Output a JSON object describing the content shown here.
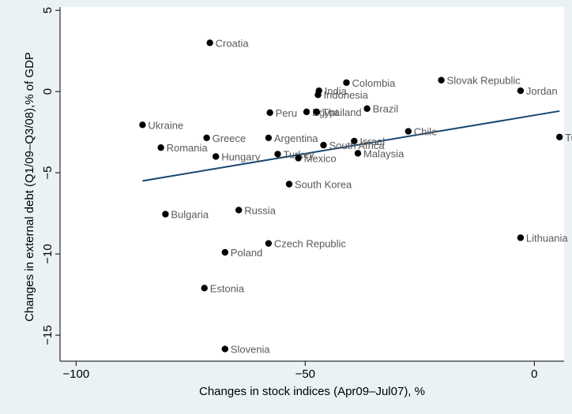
{
  "chart_data": {
    "type": "scatter",
    "title": "",
    "xlabel": "Changes in stock indices (Apr09–Jul07), %",
    "ylabel": "Changes in external debt (Q1/09–Q3/08),% of GDP",
    "xlim": [
      -103.5,
      6.5
    ],
    "ylim": [
      -16.6,
      5.2
    ],
    "xticks": [
      -100,
      -50,
      0
    ],
    "xtick_labels": [
      "−100",
      "−50",
      "0"
    ],
    "yticks": [
      5,
      0,
      -5,
      -10,
      -15
    ],
    "ytick_labels": [
      "5",
      "0",
      "−5",
      "−10",
      "−15"
    ],
    "grid": false,
    "legend": "none",
    "colors": {
      "background": "#eaf2f3",
      "plot_area": "#ffffff",
      "points": "#000000",
      "fit_line": "#1a476f",
      "labels": "#595959"
    },
    "points": [
      {
        "label": "Croatia",
        "x": -70.8,
        "y": 3.0
      },
      {
        "label": "Colombia",
        "x": -41.0,
        "y": 0.55
      },
      {
        "label": "Slovak Republic",
        "x": -20.3,
        "y": 0.7
      },
      {
        "label": "Jordan",
        "x": -3.0,
        "y": 0.05
      },
      {
        "label": "India",
        "x": -47.0,
        "y": 0.05
      },
      {
        "label": "Indonesia",
        "x": -47.2,
        "y": -0.2
      },
      {
        "label": "Brazil",
        "x": -36.5,
        "y": -1.05
      },
      {
        "label": "Peru",
        "x": -57.7,
        "y": -1.3
      },
      {
        "label": "Egypt",
        "x": -49.7,
        "y": -1.25
      },
      {
        "label": "Thailand",
        "x": -47.5,
        "y": -1.25
      },
      {
        "label": "Ukraine",
        "x": -85.5,
        "y": -2.05
      },
      {
        "label": "Chile",
        "x": -27.5,
        "y": -2.45
      },
      {
        "label": "Tunisia",
        "x": 5.5,
        "y": -2.8
      },
      {
        "label": "Greece",
        "x": -71.5,
        "y": -2.85
      },
      {
        "label": "Argentina",
        "x": -58.0,
        "y": -2.85
      },
      {
        "label": "Israel",
        "x": -39.3,
        "y": -3.05
      },
      {
        "label": "South Africa",
        "x": -46.0,
        "y": -3.3
      },
      {
        "label": "Romania",
        "x": -81.5,
        "y": -3.45
      },
      {
        "label": "Malaysia",
        "x": -38.5,
        "y": -3.8
      },
      {
        "label": "Turkey",
        "x": -56.0,
        "y": -3.85
      },
      {
        "label": "Hungary",
        "x": -69.5,
        "y": -4.0
      },
      {
        "label": "Mexico",
        "x": -51.5,
        "y": -4.1
      },
      {
        "label": "South Korea",
        "x": -53.5,
        "y": -5.7
      },
      {
        "label": "Russia",
        "x": -64.5,
        "y": -7.3
      },
      {
        "label": "Bulgaria",
        "x": -80.5,
        "y": -7.55
      },
      {
        "label": "Lithuania",
        "x": -3.0,
        "y": -9.0
      },
      {
        "label": "Czech Republic",
        "x": -58.0,
        "y": -9.35
      },
      {
        "label": "Poland",
        "x": -67.5,
        "y": -9.9
      },
      {
        "label": "Estonia",
        "x": -72.0,
        "y": -12.1
      },
      {
        "label": "Slovenia",
        "x": -67.5,
        "y": -15.85
      }
    ],
    "fit_line": {
      "x": [
        -85.5,
        5.5
      ],
      "y": [
        -5.5,
        -1.2
      ]
    }
  }
}
